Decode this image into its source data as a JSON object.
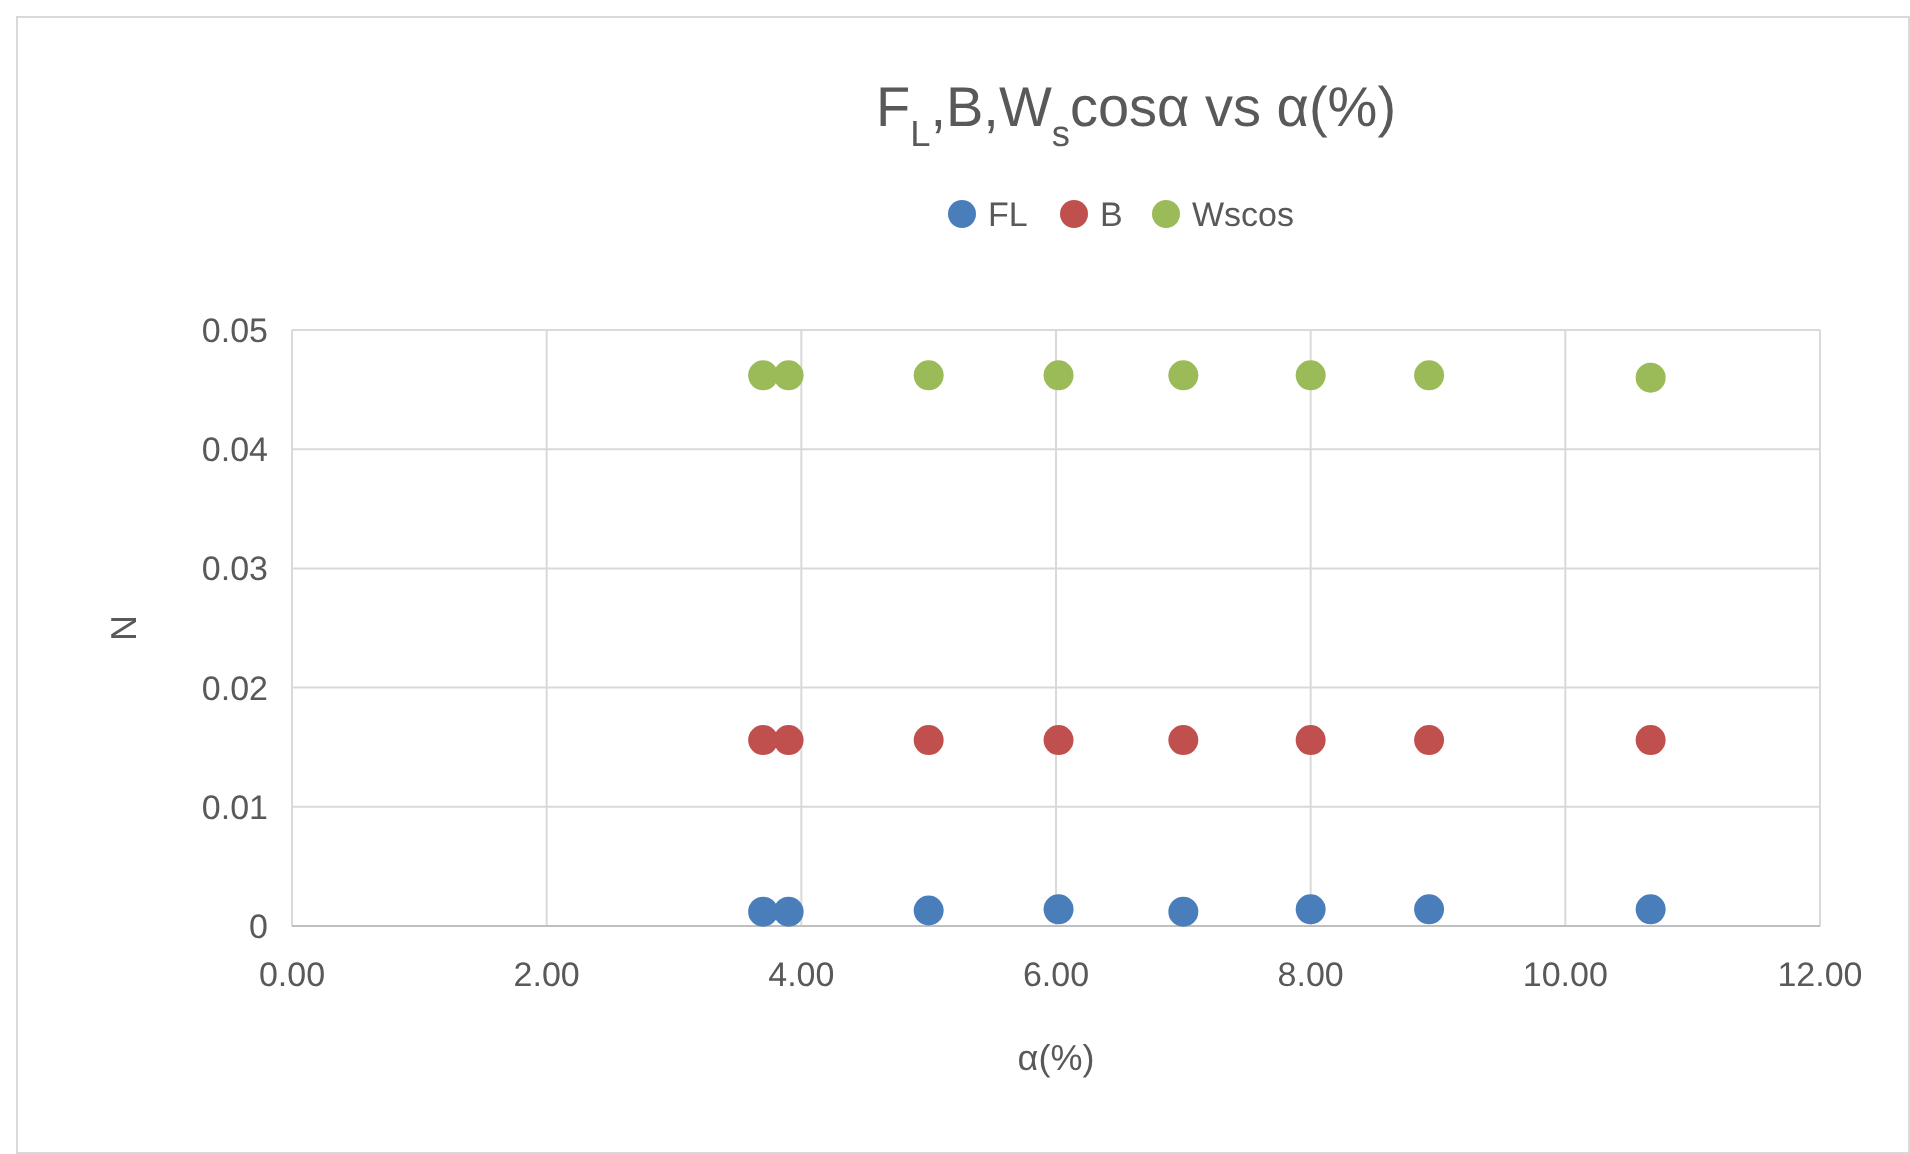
{
  "chart_data": {
    "type": "scatter",
    "title": "F$_{L}$,B,W$_{s}$cosα vs α(%)",
    "xlabel": "α(%)",
    "ylabel": "N",
    "x": [
      3.7,
      3.9,
      5.0,
      6.02,
      7.0,
      8.0,
      8.93,
      10.67
    ],
    "series": [
      {
        "name": "FL",
        "color": "#4a7ebb",
        "values": [
          0.0012,
          0.0012,
          0.0013,
          0.0014,
          0.0012,
          0.0014,
          0.0014,
          0.0014
        ]
      },
      {
        "name": "B",
        "color": "#c0504d",
        "values": [
          0.0156,
          0.0156,
          0.0156,
          0.0156,
          0.0156,
          0.0156,
          0.0156,
          0.0156
        ]
      },
      {
        "name": "Wscos",
        "color": "#9bbb59",
        "values": [
          0.0462,
          0.0462,
          0.0462,
          0.0462,
          0.0462,
          0.0462,
          0.0462,
          0.046
        ]
      }
    ],
    "xlim": [
      0,
      12
    ],
    "xticks": [
      {
        "value": 0,
        "label": "0.00"
      },
      {
        "value": 2,
        "label": "2.00"
      },
      {
        "value": 4,
        "label": "4.00"
      },
      {
        "value": 6,
        "label": "6.00"
      },
      {
        "value": 8,
        "label": "8.00"
      },
      {
        "value": 10,
        "label": "10.00"
      },
      {
        "value": 12,
        "label": "12.00"
      }
    ],
    "ylim": [
      0,
      0.05
    ],
    "yticks": [
      0,
      0.01,
      0.02,
      0.03,
      0.04,
      0.05
    ],
    "grid": true,
    "legend": "top",
    "marker": "circle"
  }
}
